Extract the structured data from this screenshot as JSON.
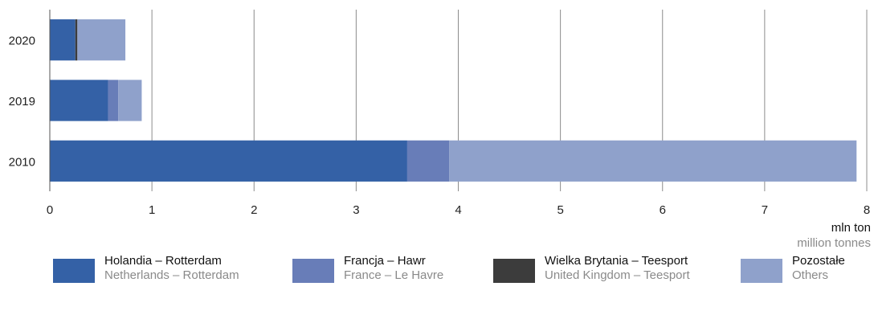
{
  "chart_data": {
    "type": "bar",
    "orientation": "horizontal",
    "stacked": true,
    "categories": [
      "2020",
      "2019",
      "2010"
    ],
    "series": [
      {
        "name": "Holandia – Rotterdam",
        "name_en": "Netherlands – Rotterdam",
        "color": "#3461a6",
        "values": [
          0.25,
          0.57,
          3.5
        ]
      },
      {
        "name": "Francja – Hawr",
        "name_en": "France – Le Havre",
        "color": "#687db8",
        "values": [
          0.0,
          0.1,
          0.41
        ]
      },
      {
        "name": "Wielka Brytania – Teesport",
        "name_en": "United Kingdom – Teesport",
        "color": "#3c3c3c",
        "values": [
          0.02,
          0.0,
          0.0
        ]
      },
      {
        "name": "Pozostałe",
        "name_en": "Others",
        "color": "#8fa1cb",
        "values": [
          0.47,
          0.23,
          3.99
        ]
      }
    ],
    "xlim": [
      0,
      8
    ],
    "xticks": [
      "0",
      "1",
      "2",
      "3",
      "4",
      "5",
      "6",
      "7",
      "8"
    ],
    "xlabel": "mln ton",
    "xlabel_en": "million tonnes",
    "grid": true,
    "legend_position": "bottom"
  }
}
